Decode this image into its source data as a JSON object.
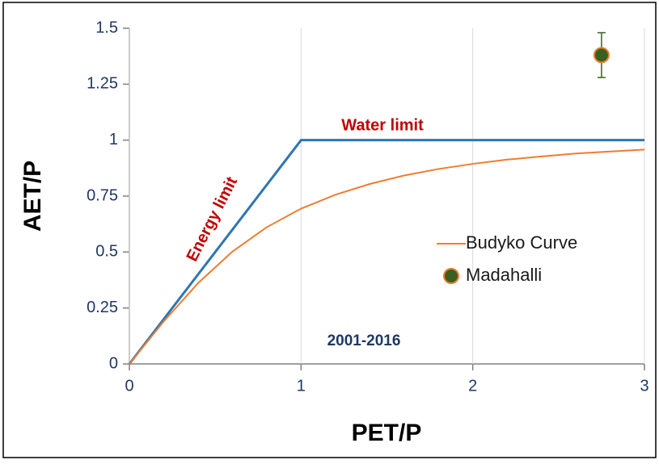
{
  "chart_data": {
    "type": "line",
    "xlabel": "PET/P",
    "ylabel": "AET/P",
    "xlim": [
      0,
      3
    ],
    "xticks": [
      0,
      1,
      2,
      3
    ],
    "ylim": [
      0,
      1.5
    ],
    "yticks": [
      0,
      0.25,
      0.5,
      0.75,
      1,
      1.25,
      1.5
    ],
    "limit_line": {
      "x": [
        0,
        1,
        3
      ],
      "values": [
        0,
        1,
        1
      ],
      "color": "#2e75b6"
    },
    "series": [
      {
        "name": "Budyko Curve",
        "color": "#ed7d31",
        "x": [
          0,
          0.2,
          0.4,
          0.6,
          0.8,
          1,
          1.2,
          1.4,
          1.6,
          1.8,
          2,
          2.2,
          2.4,
          2.6,
          2.8,
          3
        ],
        "values": [
          0,
          0.19,
          0.361,
          0.502,
          0.611,
          0.694,
          0.756,
          0.804,
          0.842,
          0.871,
          0.894,
          0.913,
          0.927,
          0.94,
          0.949,
          0.958
        ]
      },
      {
        "name": "Madahalli",
        "color": "#3a5f1f",
        "marker_edge": "#ed7d31",
        "x": [
          2.75
        ],
        "values": [
          1.38
        ],
        "errors": [
          0.1
        ]
      }
    ],
    "annotations": [
      {
        "text": "Energy limit",
        "color": "#c00000"
      },
      {
        "text": "Water limit",
        "color": "#c00000"
      },
      {
        "text": "2001-2016",
        "color": "#1f3864"
      }
    ],
    "legend": "right"
  }
}
